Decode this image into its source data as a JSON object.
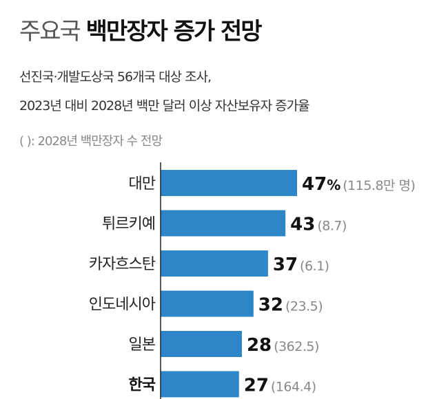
{
  "header": {
    "title_light": "주요국",
    "title_bold": "백만장자 증가 전망",
    "subtitle_line1": "선진국·개발도상국 56개국 대상 조사,",
    "subtitle_line2": "2023년 대비 2028년 백만 달러 이상 자산보유자 증가율",
    "note": "( ): 2028년 백만장자 수 전망"
  },
  "colors": {
    "bar": "#2d86c8",
    "axis": "#222222"
  },
  "chart_data": {
    "type": "bar",
    "orientation": "horizontal",
    "categories": [
      "대만",
      "튀르키예",
      "카자흐스탄",
      "인도네시아",
      "일본",
      "한국"
    ],
    "values": [
      47,
      43,
      37,
      32,
      28,
      27
    ],
    "value_labels": [
      "47",
      "43",
      "37",
      "32",
      "28",
      "27"
    ],
    "unit_label": "%",
    "secondary_labels": [
      "(115.8만 명)",
      "(8.7)",
      "(6.1)",
      "(23.5)",
      "(362.5)",
      "(164.4)"
    ],
    "highlight_category": "한국",
    "xlim": [
      0,
      47
    ]
  }
}
